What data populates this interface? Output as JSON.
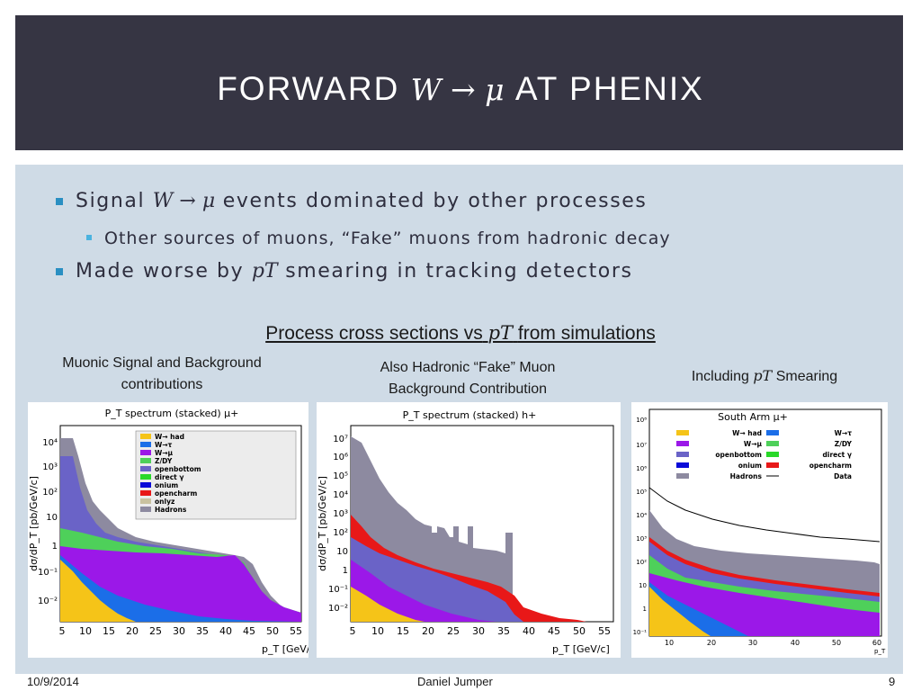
{
  "title": {
    "prefix": "FORWARD",
    "math": "W → μ",
    "suffix": "AT PHENIX"
  },
  "bullets": [
    {
      "pre": "Signal",
      "math": "W → μ",
      "post": "events dominated by other processes"
    },
    {
      "text": "Other sources of muons, “Fake” muons from hadronic decay"
    },
    {
      "pre": "Made worse by",
      "math": "pT",
      "post": "smearing in tracking detectors"
    }
  ],
  "subtitle": {
    "pre": "Process cross sections vs",
    "math": "pT",
    "post": "from simulations"
  },
  "captions": {
    "left_line1": "Muonic Signal and Background",
    "left_line2": "contributions",
    "mid_line1": "Also Hadronic “Fake” Muon",
    "mid_line2": "Background Contribution",
    "right_pre": "Including",
    "right_math": "pT",
    "right_post": "Smearing"
  },
  "footer": {
    "date": "10/9/2014",
    "author": "Daniel Jumper",
    "page": "9"
  },
  "colors": {
    "title_bg": "#363543",
    "panel_bg": "#cfdbe6",
    "bullet": "#2a8fc2"
  },
  "plots": [
    {
      "title": "P_T spectrum (stacked) μ+",
      "ylabel": "dσ/dP_T [pb/GeV/c]",
      "xlabel": "p_T [GeV/c]",
      "xticks": [
        "5",
        "10",
        "15",
        "20",
        "25",
        "30",
        "35",
        "40",
        "45",
        "50",
        "55"
      ],
      "yticks": [
        "10⁴",
        "10³",
        "10²",
        "10",
        "1",
        "10⁻¹",
        "10⁻²"
      ],
      "legend": [
        "W→ had",
        "W→τ",
        "W→μ",
        "Z/DY",
        "openbottom",
        "direct γ",
        "onium",
        "opencharm",
        "onlyz",
        "Hadrons"
      ]
    },
    {
      "title": "P_T spectrum (stacked) h+",
      "ylabel": "dσ/dP_T [pb/GeV/c]",
      "xlabel": "p_T [GeV/c]",
      "xticks": [
        "5",
        "10",
        "15",
        "20",
        "25",
        "30",
        "35",
        "40",
        "45",
        "50",
        "55"
      ],
      "yticks": [
        "10⁷",
        "10⁶",
        "10⁵",
        "10⁴",
        "10³",
        "10²",
        "10",
        "1",
        "10⁻¹",
        "10⁻²"
      ]
    },
    {
      "title": "South Arm μ+",
      "xlabel": "p_T",
      "xticks": [
        "10",
        "20",
        "30",
        "40",
        "50",
        "60"
      ],
      "yticks": [
        "10⁸",
        "10⁷",
        "10⁶",
        "10⁵",
        "10⁴",
        "10³",
        "10²",
        "10",
        "1",
        "10⁻¹"
      ],
      "legend": [
        "W→ had",
        "W→τ",
        "W→μ",
        "Z/DY",
        "openbottom",
        "direct γ",
        "onium",
        "opencharm",
        "Hadrons",
        "Data"
      ]
    }
  ]
}
